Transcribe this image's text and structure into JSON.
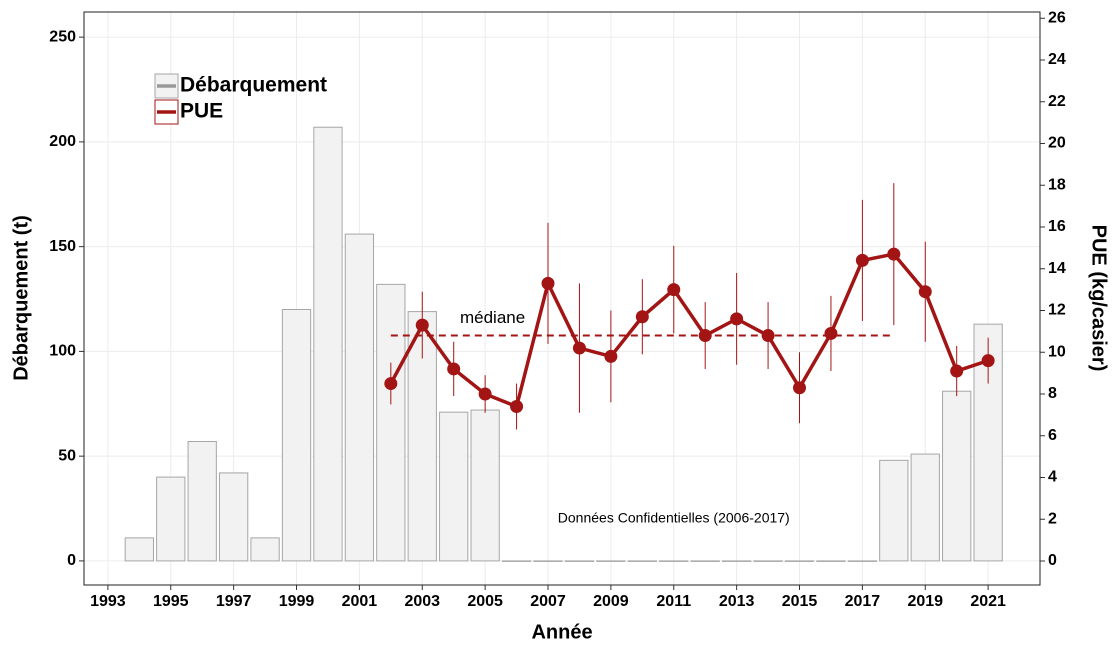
{
  "chart_data": {
    "type": "bar+line",
    "xlabel": "Année",
    "ylabel": "Débarquement (t)",
    "y2label": "PUE (kg/casier)",
    "xlim": [
      1992.24,
      2022.65
    ],
    "xticks": [
      1993,
      1995,
      1997,
      1999,
      2001,
      2003,
      2005,
      2007,
      2009,
      2011,
      2013,
      2015,
      2017,
      2019,
      2021
    ],
    "ylim": [
      -11.5,
      262
    ],
    "yticks": [
      0,
      50,
      100,
      150,
      200,
      250
    ],
    "y2lim": [
      -1.15,
      26.3
    ],
    "y2ticks": [
      0,
      2,
      4,
      6,
      8,
      10,
      12,
      14,
      16,
      18,
      20,
      22,
      24,
      26
    ],
    "grid": true,
    "legend": "top-left",
    "series": [
      {
        "name": "Débarquement",
        "type": "bar",
        "color": "#f2f2f2",
        "edge": "#a6a6a6",
        "legend_color": "#999999",
        "x": [
          1994,
          1995,
          1996,
          1997,
          1998,
          1999,
          2000,
          2001,
          2002,
          2003,
          2004,
          2005,
          2006,
          2007,
          2008,
          2009,
          2010,
          2011,
          2012,
          2013,
          2014,
          2015,
          2016,
          2017,
          2018,
          2019,
          2020,
          2021
        ],
        "values": [
          11,
          40,
          57,
          42,
          11,
          120,
          207,
          156,
          132,
          119,
          71,
          72,
          0,
          0,
          0,
          0,
          0,
          0,
          0,
          0,
          0,
          0,
          0,
          0,
          48,
          51,
          81,
          113
        ]
      },
      {
        "name": "PUE",
        "type": "line",
        "axis": "y2",
        "color": "#a31515",
        "x": [
          2002,
          2003,
          2004,
          2005,
          2006,
          2007,
          2008,
          2009,
          2010,
          2011,
          2012,
          2013,
          2014,
          2015,
          2016,
          2017,
          2018,
          2019,
          2020,
          2021
        ],
        "values": [
          8.5,
          11.3,
          9.2,
          8.0,
          7.4,
          13.3,
          10.2,
          9.8,
          11.7,
          13.0,
          10.8,
          11.6,
          10.8,
          8.3,
          10.9,
          14.4,
          14.7,
          12.9,
          9.1,
          9.6
        ],
        "errors": [
          1.0,
          1.6,
          1.3,
          0.9,
          1.1,
          2.9,
          3.1,
          2.2,
          1.8,
          2.1,
          1.6,
          2.2,
          1.6,
          1.7,
          1.8,
          2.9,
          3.4,
          2.4,
          1.2,
          1.1
        ]
      }
    ],
    "median": {
      "label": "médiane",
      "value": 10.8,
      "x": [
        2002,
        2018
      ]
    },
    "annotation": "Données Confidentielles (2006-2017)"
  }
}
